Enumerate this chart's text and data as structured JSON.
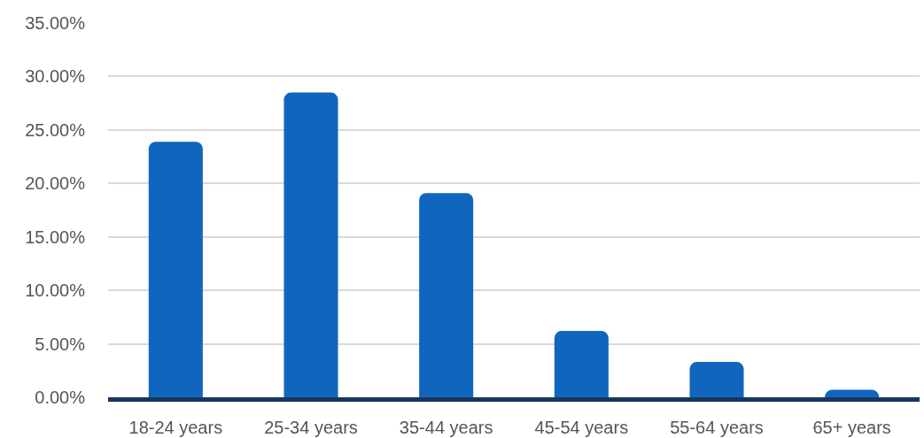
{
  "chart_data": {
    "type": "bar",
    "categories": [
      "18-24 years",
      "25-34 years",
      "35-44 years",
      "45-54 years",
      "55-64 years",
      "65+ years"
    ],
    "values": [
      23.9,
      28.5,
      19.1,
      6.2,
      3.3,
      0.7
    ],
    "color": "#1066be",
    "ylim": [
      0,
      35
    ],
    "yticks": [
      {
        "value": 0,
        "label": "0.00%"
      },
      {
        "value": 5,
        "label": "5.00%"
      },
      {
        "value": 10,
        "label": "10.00%"
      },
      {
        "value": 15,
        "label": "15.00%"
      },
      {
        "value": 20,
        "label": "20.00%"
      },
      {
        "value": 25,
        "label": "25.00%"
      },
      {
        "value": 30,
        "label": "30.00%"
      },
      {
        "value": 35,
        "label": "35.00%"
      }
    ],
    "grid": "y"
  }
}
